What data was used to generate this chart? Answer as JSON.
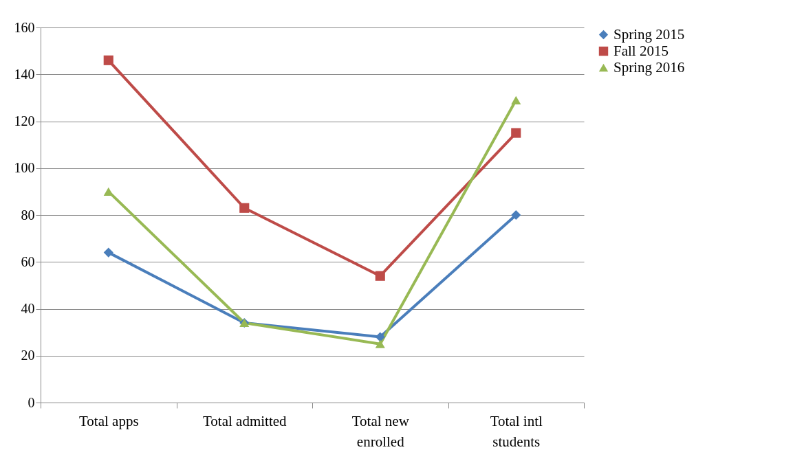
{
  "chart_data": {
    "type": "line",
    "categories": [
      "Total apps",
      "Total admitted",
      "Total new enrolled",
      "Total intl students"
    ],
    "series": [
      {
        "name": "Spring 2015",
        "color": "#4a7ebb",
        "marker": "diamond",
        "values": [
          64,
          34,
          28,
          80
        ]
      },
      {
        "name": "Fall 2015",
        "color": "#be4b48",
        "marker": "square",
        "values": [
          146,
          83,
          54,
          115
        ]
      },
      {
        "name": "Spring 2016",
        "color": "#98b954",
        "marker": "triangle",
        "values": [
          90,
          34,
          25,
          129
        ]
      }
    ],
    "ylim": [
      0,
      160
    ],
    "yticks": [
      0,
      20,
      40,
      60,
      80,
      100,
      120,
      140,
      160
    ],
    "grid": "y",
    "legend": "right",
    "line_style": "solid"
  }
}
